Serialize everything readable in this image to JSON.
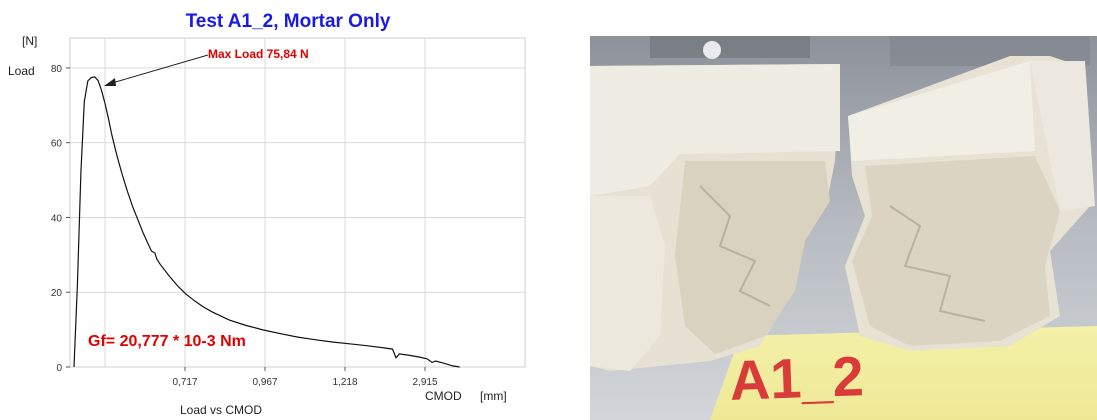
{
  "chart_data": {
    "type": "line",
    "title": "Test A1_2, Mortar Only",
    "subtitle": "Load vs CMOD",
    "ylabel_unit": "[N]",
    "ylabel": "Load",
    "xlabel": "CMOD",
    "xlabel_unit": "[mm]",
    "yticks": [
      "0",
      "20",
      "40",
      "60",
      "80"
    ],
    "ylim": [
      0,
      88
    ],
    "xticks": [
      "0,717",
      "0,967",
      "1,218",
      "2,915"
    ],
    "grid": true,
    "series": [
      {
        "values": [
          [
            0.0,
            0
          ],
          [
            0.02,
            22
          ],
          [
            0.04,
            52
          ],
          [
            0.06,
            71
          ],
          [
            0.08,
            76.5
          ],
          [
            0.1,
            77.4
          ],
          [
            0.12,
            77.6
          ],
          [
            0.14,
            76.6
          ],
          [
            0.16,
            74.0
          ],
          [
            0.18,
            70.5
          ],
          [
            0.2,
            66.5
          ],
          [
            0.22,
            62.0
          ],
          [
            0.25,
            56.5
          ],
          [
            0.28,
            51.5
          ],
          [
            0.31,
            47.0
          ],
          [
            0.34,
            43.0
          ],
          [
            0.37,
            39.5
          ],
          [
            0.4,
            36.0
          ],
          [
            0.43,
            33.0
          ],
          [
            0.45,
            31.0
          ],
          [
            0.47,
            30.5
          ],
          [
            0.48,
            29.0
          ],
          [
            0.5,
            27.5
          ],
          [
            0.55,
            24.5
          ],
          [
            0.6,
            21.8
          ],
          [
            0.65,
            19.5
          ],
          [
            0.7,
            17.7
          ],
          [
            0.75,
            16.1
          ],
          [
            0.8,
            14.8
          ],
          [
            0.9,
            12.6
          ],
          [
            1.0,
            11.1
          ],
          [
            1.1,
            9.9
          ],
          [
            1.2,
            8.9
          ],
          [
            1.3,
            8.0
          ],
          [
            1.4,
            7.3
          ],
          [
            1.5,
            6.7
          ],
          [
            1.6,
            6.2
          ],
          [
            1.7,
            5.7
          ],
          [
            1.8,
            5.1
          ],
          [
            1.85,
            4.8
          ],
          [
            1.87,
            2.5
          ],
          [
            1.89,
            3.5
          ],
          [
            1.95,
            3.1
          ],
          [
            2.0,
            2.7
          ],
          [
            2.05,
            2.2
          ],
          [
            2.08,
            1.2
          ],
          [
            2.1,
            1.6
          ],
          [
            2.15,
            1.0
          ],
          [
            2.2,
            0.3
          ],
          [
            2.24,
            0
          ]
        ]
      }
    ],
    "annotations": [
      {
        "text": "Max Load 75,84 N",
        "color": "#e00000",
        "x": 0.1,
        "y": 77.5
      },
      {
        "text": "Gf= 20,777 * 10-3 Nm",
        "color": "#e00000"
      }
    ],
    "title_color": "#1a1ae6"
  },
  "photo": {
    "label": "A1_2"
  }
}
